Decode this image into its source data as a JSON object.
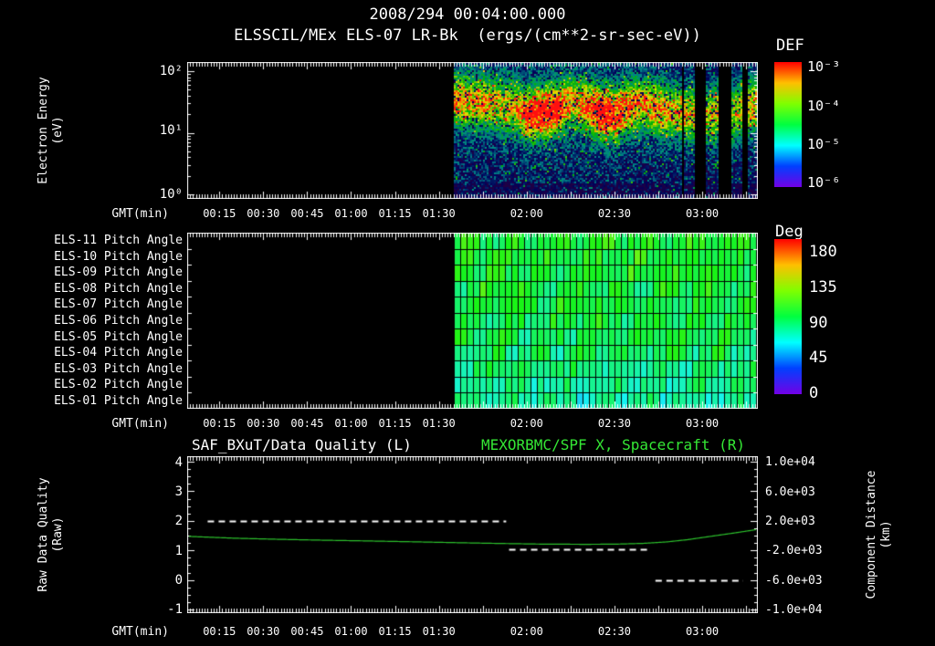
{
  "header": {
    "title": "2008/294 00:04:00.000",
    "subtitle": "ELSSCIL/MEx ELS-07 LR-Bk  (ergs/(cm**2-sr-sec-eV))"
  },
  "time_axis": {
    "label": "GMT(min)",
    "start_min": 4,
    "end_min": 199,
    "labeled_ticks": [
      {
        "min": 15,
        "label": "00:15"
      },
      {
        "min": 30,
        "label": "00:30"
      },
      {
        "min": 45,
        "label": "00:45"
      },
      {
        "min": 60,
        "label": "01:00"
      },
      {
        "min": 75,
        "label": "01:15"
      },
      {
        "min": 90,
        "label": "01:30"
      },
      {
        "min": 120,
        "label": "02:00"
      },
      {
        "min": 150,
        "label": "02:30"
      },
      {
        "min": 180,
        "label": "03:00"
      }
    ]
  },
  "chart_data": [
    {
      "type": "heatmap",
      "name": "electron-energy-spectrogram",
      "title": "ELSSCIL/MEx ELS-07 LR-Bk",
      "units": "ergs/(cm**2-sr-sec-eV)",
      "ylabel_lines": [
        "Electron Energy",
        "(eV)"
      ],
      "yscale": "log",
      "ylim_ev": [
        1,
        140
      ],
      "ytick_labels": [
        "10²",
        "10¹",
        "10⁰"
      ],
      "colorbar": {
        "title": "DEF",
        "tick_labels": [
          "10⁻³",
          "10⁻⁴",
          "10⁻⁵",
          "10⁻⁶"
        ],
        "log_range": [
          -3,
          -6
        ]
      },
      "data_start_min": 95,
      "band_profile": {
        "min": [
          95,
          105,
          115,
          120,
          125,
          130,
          135,
          140,
          145,
          150,
          155,
          160,
          165,
          170,
          175,
          181,
          186,
          190,
          193,
          199
        ],
        "center_log_ev": [
          1.55,
          1.5,
          1.45,
          1.3,
          1.35,
          1.4,
          1.5,
          1.45,
          1.35,
          1.3,
          1.45,
          1.5,
          1.4,
          1.35,
          1.3,
          1.3,
          1.35,
          1.3,
          1.4,
          1.5
        ],
        "intensity": [
          0.75,
          0.7,
          0.65,
          0.9,
          1.0,
          0.95,
          0.7,
          0.8,
          1.0,
          0.95,
          0.8,
          0.7,
          0.75,
          0.7,
          0.65,
          0.6,
          0.7,
          0.6,
          0.65,
          0.7
        ]
      },
      "gap_minutes": [
        [
          172.5,
          173.5
        ],
        [
          177,
          181
        ],
        [
          185.5,
          189.5
        ],
        [
          193.5,
          195.5
        ]
      ]
    },
    {
      "type": "heatmap",
      "name": "pitch-angle-panels",
      "rows": [
        "ELS-11 Pitch Angle",
        "ELS-10 Pitch Angle",
        "ELS-09 Pitch Angle",
        "ELS-08 Pitch Angle",
        "ELS-07 Pitch Angle",
        "ELS-06 Pitch Angle",
        "ELS-05 Pitch Angle",
        "ELS-04 Pitch Angle",
        "ELS-03 Pitch Angle",
        "ELS-02 Pitch Angle",
        "ELS-01 Pitch Angle"
      ],
      "colorbar": {
        "title": "Deg",
        "tick_labels": [
          "180",
          "135",
          "90",
          "45",
          "0"
        ],
        "range_deg": [
          0,
          180
        ]
      },
      "data_start_min": 95,
      "cell_minutes": 2.2,
      "row_mean_deg": [
        96,
        95,
        94,
        93,
        92,
        90,
        88,
        85,
        82,
        78,
        74
      ],
      "value_jitter_deg": 12
    },
    {
      "type": "line",
      "name": "data-quality-and-spacecraft-x",
      "title_left": "SAF_BXuT/Data Quality (L)",
      "title_right": "MEXORBMC/SPF X, Spacecraft (R)",
      "left_axis": {
        "label_lines": [
          "Raw Data Quality",
          "(Raw)"
        ],
        "tick_labels": [
          "4",
          "3",
          "2",
          "1",
          "0",
          "-1"
        ],
        "range": [
          -1,
          4
        ]
      },
      "right_axis": {
        "label_lines": [
          "Component Distance",
          "(km)"
        ],
        "tick_labels": [
          "1.0e+04",
          "6.0e+03",
          "2.0e+03",
          "-2.0e+03",
          "-6.0e+03",
          "-1.0e+04"
        ],
        "range_km": [
          -10000,
          10000
        ]
      },
      "series": [
        {
          "name": "SAF_BXuT/Data Quality",
          "axis": "left",
          "style": "dashed",
          "color": "#ffffff",
          "segments": [
            {
              "start_min": 11,
              "end_min": 113,
              "value": 2.0
            },
            {
              "start_min": 114,
              "end_min": 162,
              "value": 1.05
            },
            {
              "start_min": 164,
              "end_min": 194,
              "value": 0.0
            }
          ]
        },
        {
          "name": "MEXORBMC/SPF X Spacecraft",
          "axis": "right",
          "style": "solid",
          "color": "#2cc22c",
          "x_min": [
            4,
            20,
            35,
            50,
            65,
            80,
            95,
            110,
            125,
            140,
            150,
            160,
            168,
            175,
            182,
            190,
            195,
            199
          ],
          "y_km": [
            -100,
            -350,
            -500,
            -620,
            -720,
            -830,
            -950,
            -1060,
            -1150,
            -1180,
            -1160,
            -1050,
            -850,
            -550,
            -150,
            300,
            600,
            850
          ]
        }
      ]
    }
  ],
  "colors": {
    "background": "#000000",
    "foreground": "#ffffff",
    "title_right_green": "#35e835",
    "line_green": "#2cc22c"
  }
}
